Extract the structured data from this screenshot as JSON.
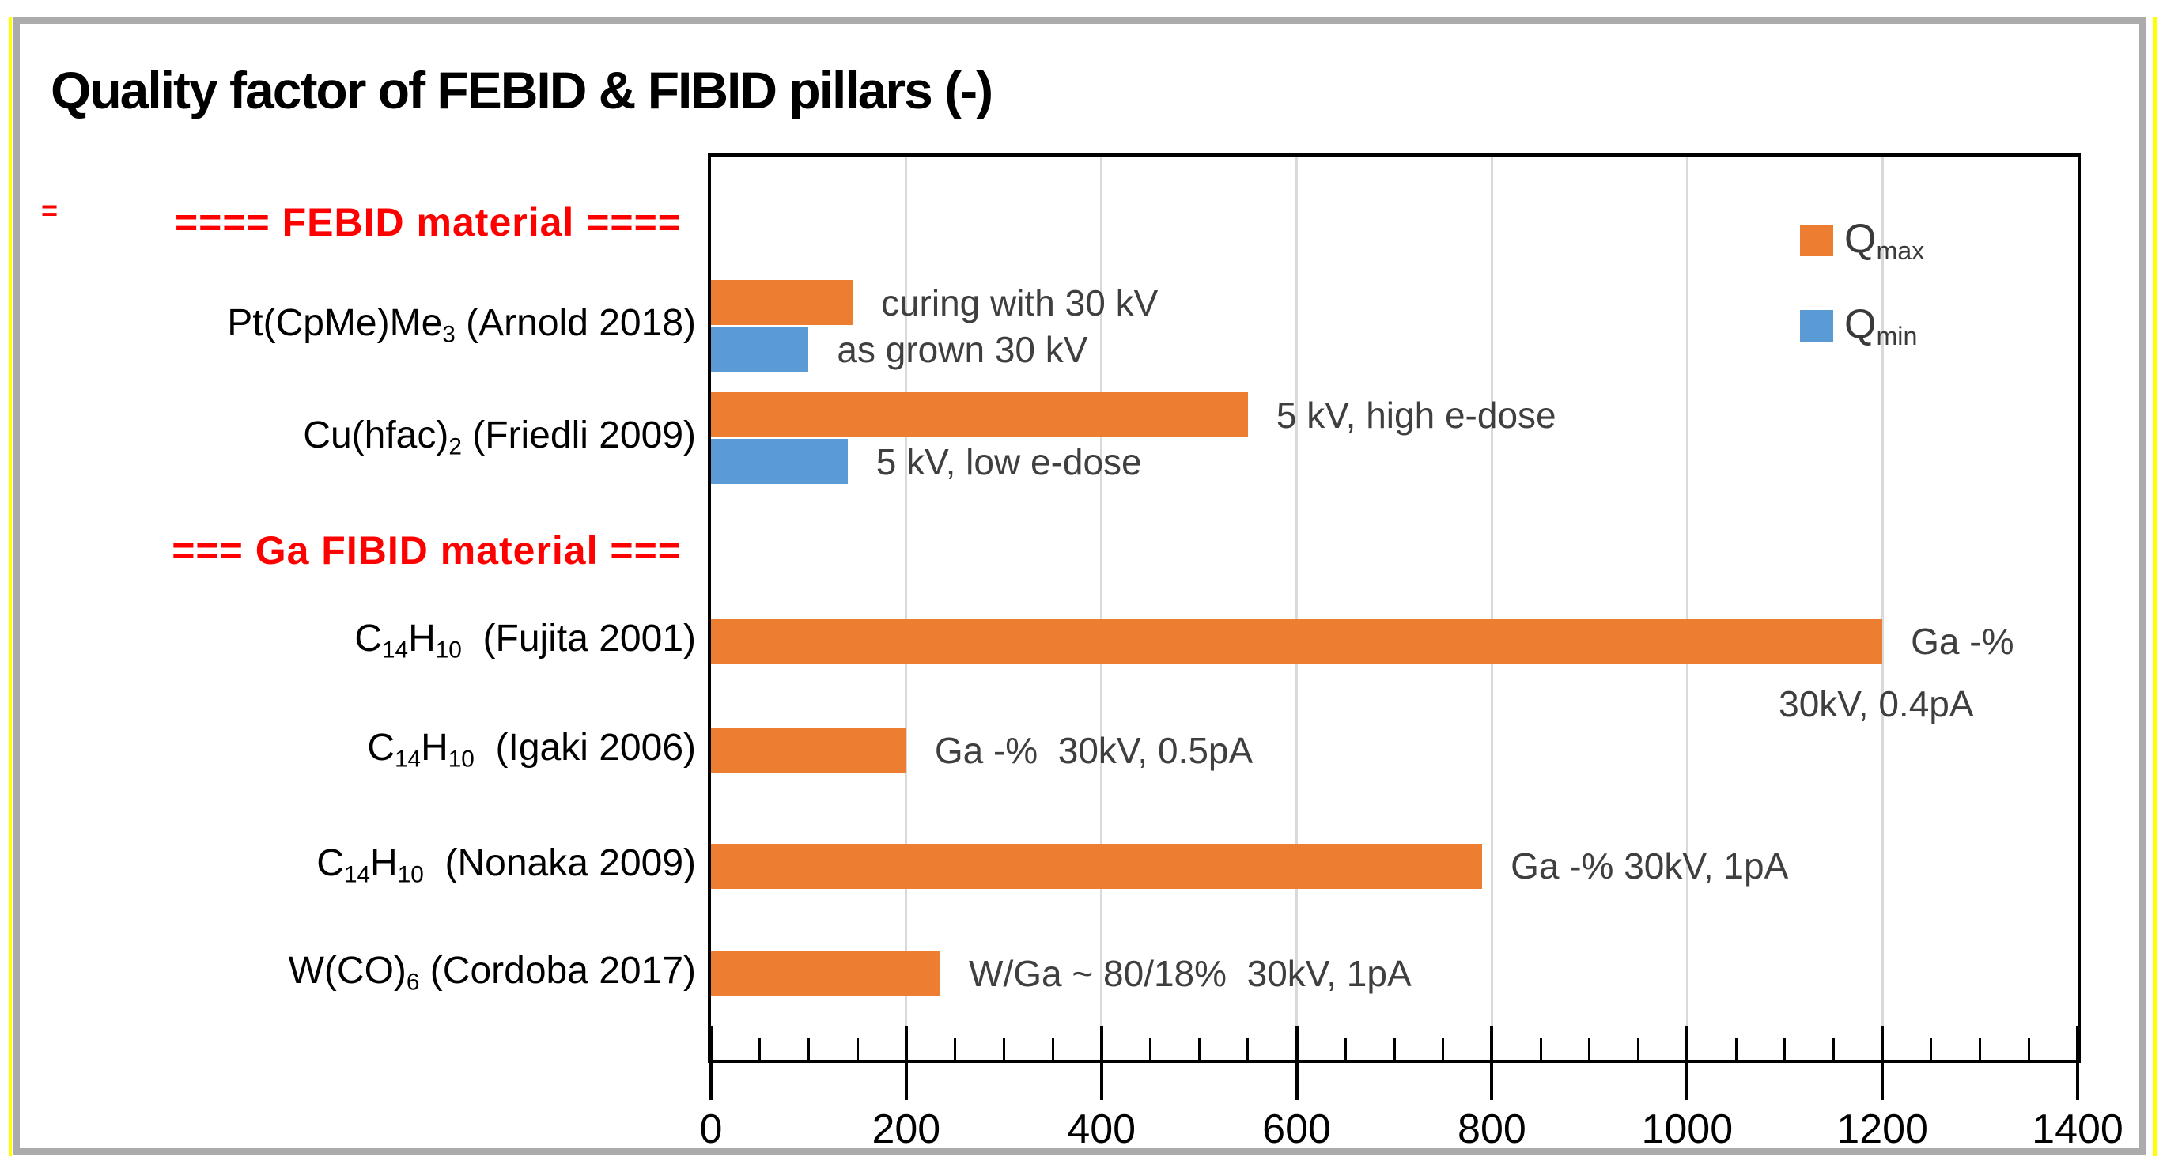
{
  "decorations": {
    "stray_mark": "="
  },
  "colors": {
    "qmax_orange": "#ED7D31",
    "qmin_blue": "#5B9BD5",
    "header_red": "#FF0000",
    "annotation_grey": "#3F3F3F",
    "gridline_grey": "#D9D9D9",
    "axis_black": "#000000",
    "slide_border_grey": "#ABABAB",
    "selection_guide_yellow": "#FFFF00"
  },
  "chart_data": {
    "type": "bar",
    "orientation": "horizontal",
    "title": "Quality factor of FEBID & FIBID pillars (-)",
    "xlabel": "",
    "ylabel": "",
    "xlim": [
      0,
      1400
    ],
    "x_major_step": 200,
    "x_minor_step": 50,
    "x_tick_labels": [
      "0",
      "200",
      "400",
      "600",
      "800",
      "1000",
      "1200",
      "1400"
    ],
    "grid": "vertical-major",
    "legend_position": "top-right-inside",
    "legend": [
      {
        "id": "qmax",
        "base": "Q",
        "sub": "max",
        "color": "#ED7D31"
      },
      {
        "id": "qmin",
        "base": "Q",
        "sub": "min",
        "color": "#5B9BD5"
      }
    ],
    "rows": [
      {
        "kind": "header",
        "text": "==== FEBID material ===="
      },
      {
        "kind": "item",
        "key": "arnold",
        "label_segments": [
          {
            "t": "Pt(CpMe)Me"
          },
          {
            "t": "3",
            "sub": true
          },
          {
            "t": " (Arnold 2018)"
          }
        ],
        "bars": [
          {
            "series": "qmax",
            "value": 145,
            "note": "curing with 30 kV"
          },
          {
            "series": "qmin",
            "value": 100,
            "note": "as grown 30 kV"
          }
        ]
      },
      {
        "kind": "item",
        "key": "friedli",
        "label_segments": [
          {
            "t": "Cu(hfac)"
          },
          {
            "t": "2",
            "sub": true
          },
          {
            "t": " (Friedli 2009)"
          }
        ],
        "bars": [
          {
            "series": "qmax",
            "value": 550,
            "note": "5 kV, high e-dose"
          },
          {
            "series": "qmin",
            "value": 140,
            "note": "5 kV, low e-dose"
          }
        ]
      },
      {
        "kind": "header",
        "text": "=== Ga FIBID material ==="
      },
      {
        "kind": "item",
        "key": "fujita",
        "label_segments": [
          {
            "t": "C"
          },
          {
            "t": "14",
            "sub": true
          },
          {
            "t": "H"
          },
          {
            "t": "10",
            "sub": true
          },
          {
            "t": "  (Fujita 2001)"
          }
        ],
        "bars": [
          {
            "series": "qmax",
            "value": 1200,
            "note": "Ga -%",
            "note2": "30kV, 0.4pA"
          }
        ]
      },
      {
        "kind": "item",
        "key": "igaki",
        "label_segments": [
          {
            "t": "C"
          },
          {
            "t": "14",
            "sub": true
          },
          {
            "t": "H"
          },
          {
            "t": "10",
            "sub": true
          },
          {
            "t": "  (Igaki 2006)"
          }
        ],
        "bars": [
          {
            "series": "qmax",
            "value": 200,
            "note": "Ga -%  30kV, 0.5pA"
          }
        ]
      },
      {
        "kind": "item",
        "key": "nonaka",
        "label_segments": [
          {
            "t": "C"
          },
          {
            "t": "14",
            "sub": true
          },
          {
            "t": "H"
          },
          {
            "t": "10",
            "sub": true
          },
          {
            "t": "  (Nonaka 2009)"
          }
        ],
        "bars": [
          {
            "series": "qmax",
            "value": 790,
            "note": "Ga -% 30kV, 1pA"
          }
        ]
      },
      {
        "kind": "item",
        "key": "cordoba",
        "label_segments": [
          {
            "t": "W(CO)"
          },
          {
            "t": "6",
            "sub": true
          },
          {
            "t": " (Cordoba 2017)"
          }
        ],
        "bars": [
          {
            "series": "qmax",
            "value": 235,
            "note": "W/Ga ~ 80/18%  30kV, 1pA"
          }
        ]
      }
    ]
  }
}
